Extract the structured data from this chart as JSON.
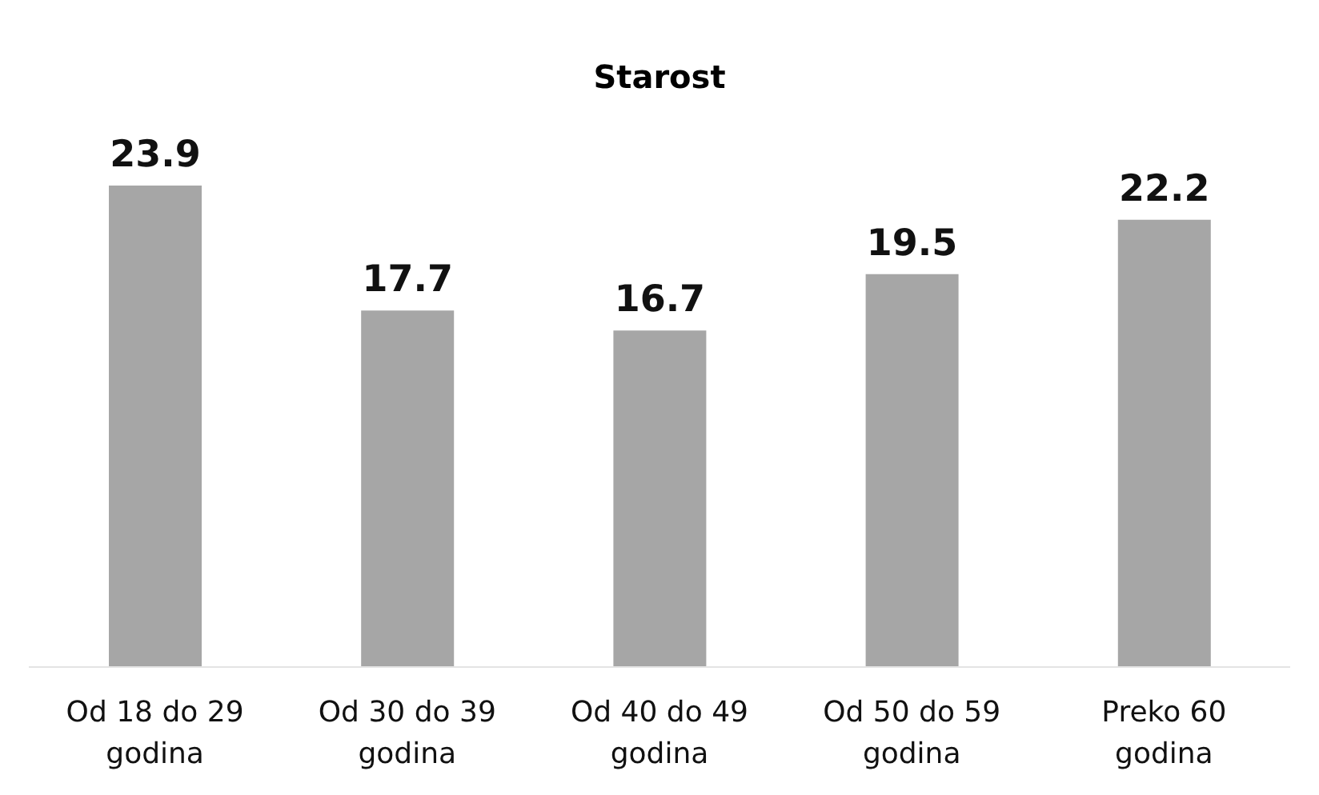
{
  "chart_data": {
    "type": "bar",
    "title": "Starost",
    "categories": [
      "Od 18 do 29 godina",
      "Od 30 do 39 godina",
      "Od 40 do 49 godina",
      "Od 50 do 59 godina",
      "Preko 60 godina"
    ],
    "values": [
      23.9,
      17.7,
      16.7,
      19.5,
      22.2
    ],
    "color": "#a6a6a6",
    "data_labels": true,
    "tick_labels": "x"
  }
}
